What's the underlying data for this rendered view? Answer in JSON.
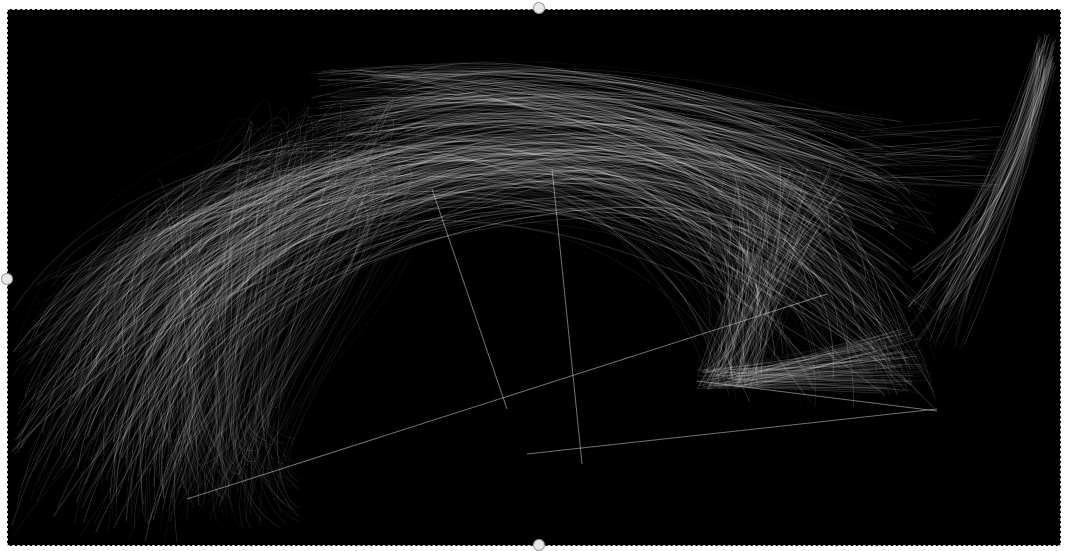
{
  "canvas": {
    "background": "#000000",
    "stroke_color": "#ffffff",
    "selection_border_color": "#cfcfcf",
    "handle_color": "#e8e8e8"
  },
  "handles": [
    "top",
    "bottom",
    "left"
  ]
}
